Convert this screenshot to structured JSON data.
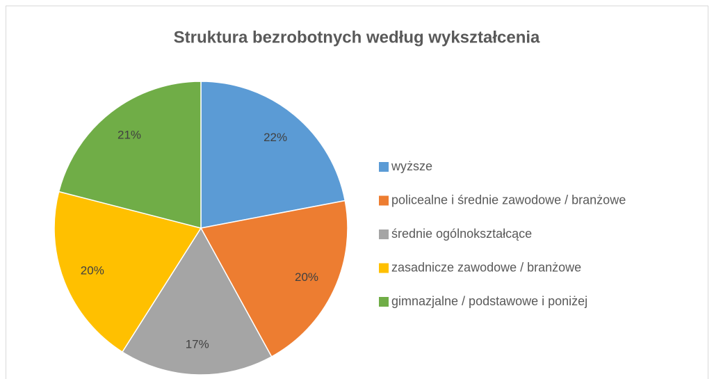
{
  "chart_data": {
    "type": "pie",
    "title": "Struktura bezrobotnych według wykształcenia",
    "categories": [
      "wyższe",
      "policealne i średnie zawodowe / branżowe",
      "średnie ogólnokształcące",
      "zasadnicze zawodowe / branżowe",
      "gimnazjalne / podstawowe i poniżej"
    ],
    "values": [
      22,
      20,
      17,
      20,
      21
    ],
    "value_labels": [
      "22%",
      "20%",
      "17%",
      "20%",
      "21%"
    ],
    "colors": [
      "#5b9bd5",
      "#ed7d31",
      "#a5a5a5",
      "#ffc000",
      "#70ad47"
    ],
    "legend": "right"
  }
}
